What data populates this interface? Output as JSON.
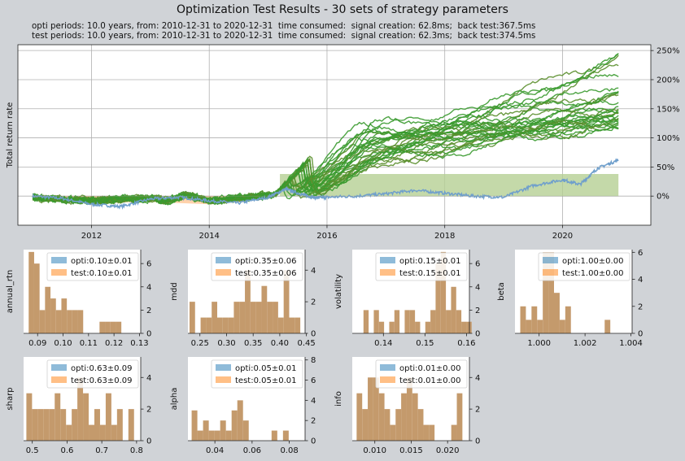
{
  "title": "Optimization Test Results - 30 sets of strategy parameters",
  "info_lines": [
    "opti periods: 10.0 years, from: 2010-12-31 to 2020-12-31  time consumed:  signal creation: 62.8ms;  back test:367.5ms",
    "test periods: 10.0 years, from: 2010-12-31 to 2020-12-31  time consumed:  signal creation: 62.3ms;  back test:374.5ms"
  ],
  "colors": {
    "opti": "#1f77b4",
    "test": "#ff7f0e",
    "strategy": "#3a9a2f",
    "benchmark": "#6f9fcc",
    "area": "#b5cf94",
    "overlap": "#c49a6c"
  },
  "chart_data": [
    {
      "type": "line",
      "name": "total-return",
      "ylabel": "Total return rate",
      "x_ticks": [
        "2012",
        "2014",
        "2016",
        "2018",
        "2020"
      ],
      "x_range": [
        2010.75,
        2021.5
      ],
      "y_ticks": [
        "0%",
        "50%",
        "100%",
        "150%",
        "200%",
        "250%"
      ],
      "ylim": [
        -50,
        260
      ],
      "grid": true,
      "benchmark": {
        "x": [
          2011.0,
          2011.5,
          2012.0,
          2012.5,
          2013.0,
          2013.5,
          2014.0,
          2014.5,
          2015.0,
          2015.3,
          2015.6,
          2015.8,
          2016.0,
          2016.5,
          2017.0,
          2017.5,
          2018.0,
          2018.5,
          2019.0,
          2019.5,
          2020.0,
          2020.3,
          2020.6,
          2020.95
        ],
        "y": [
          0,
          -4,
          -14,
          -18,
          -5,
          -2,
          -8,
          -12,
          -2,
          12,
          2,
          -3,
          -2,
          0,
          4,
          10,
          5,
          0,
          -2,
          18,
          28,
          20,
          48,
          62
        ]
      },
      "strategy_final_values": [
        248,
        240,
        235,
        222,
        210,
        195,
        185,
        176,
        170,
        165,
        160,
        155,
        152,
        148,
        145,
        142,
        140,
        138,
        136,
        134,
        132,
        130,
        128,
        127,
        126,
        125,
        124,
        122,
        121,
        120
      ]
    },
    {
      "type": "bar",
      "name": "annual_rtn",
      "ylabel": "annual_rtn",
      "x_ticks": [
        "0.09",
        "0.10",
        "0.11",
        "0.12",
        "0.13"
      ],
      "xlim": [
        0.0845,
        0.1305
      ],
      "y_ticks": [
        "0",
        "2",
        "4",
        "6"
      ],
      "ylim": [
        0,
        7.2
      ],
      "bin_start": 0.0865,
      "bin_width": 0.00214,
      "counts": [
        7,
        6,
        2,
        4,
        3,
        2,
        3,
        2,
        2,
        2,
        0,
        0,
        0,
        1,
        1,
        1,
        1
      ],
      "legend": [
        "opti:0.10±0.01",
        "test:0.10±0.01"
      ],
      "legend_pos": "top-right"
    },
    {
      "type": "bar",
      "name": "mdd",
      "ylabel": "mdd",
      "x_ticks": [
        "0.25",
        "0.30",
        "0.35",
        "0.40",
        "0.45"
      ],
      "xlim": [
        0.2275,
        0.4475
      ],
      "y_ticks": [
        "0",
        "2",
        "4"
      ],
      "ylim": [
        0,
        5.3
      ],
      "bin_start": 0.2305,
      "bin_width": 0.0104,
      "counts": [
        2,
        0,
        1,
        1,
        2,
        1,
        1,
        1,
        2,
        2,
        4,
        2,
        2,
        3,
        2,
        2,
        1,
        4,
        1,
        1
      ],
      "legend": [
        "opti:0.35±0.06",
        "test:0.35±0.06"
      ],
      "legend_pos": "top-right"
    },
    {
      "type": "bar",
      "name": "volatility",
      "ylabel": "volatility",
      "x_ticks": [
        "0.14",
        "0.15",
        "0.16"
      ],
      "xlim": [
        0.1325,
        0.1607
      ],
      "y_ticks": [
        "0",
        "2",
        "4",
        "6"
      ],
      "ylim": [
        0,
        7.2
      ],
      "bin_start": 0.1352,
      "bin_width": 0.00124,
      "counts": [
        2,
        0,
        2,
        1,
        0,
        1,
        2,
        0,
        2,
        2,
        1,
        0,
        1,
        2,
        6,
        7,
        2,
        4,
        2,
        1,
        1
      ],
      "legend": [
        "opti:0.15±0.01",
        "test:0.15±0.01"
      ],
      "legend_pos": "top-right"
    },
    {
      "type": "bar",
      "name": "beta",
      "ylabel": "beta",
      "x_ticks": [
        "1.000",
        "1.002",
        "1.004"
      ],
      "xlim": [
        0.99895,
        1.00405
      ],
      "y_ticks": [
        "0",
        "2",
        "4",
        "6"
      ],
      "ylim": [
        0,
        6.2
      ],
      "bin_start": 0.99918,
      "bin_width": 0.000245,
      "counts": [
        2,
        1,
        2,
        1,
        6,
        6,
        3,
        1,
        2,
        0,
        0,
        0,
        0,
        0,
        0,
        1
      ],
      "legend": [
        "opti:1.00±0.00",
        "test:1.00±0.00"
      ],
      "legend_pos": "top-right"
    },
    {
      "type": "bar",
      "name": "sharp",
      "ylabel": "sharp",
      "x_ticks": [
        "0.5",
        "0.6",
        "0.7",
        "0.8"
      ],
      "xlim": [
        0.475,
        0.812
      ],
      "y_ticks": [
        "0",
        "2",
        "4"
      ],
      "ylim": [
        0,
        5.3
      ],
      "bin_start": 0.483,
      "bin_width": 0.0163,
      "counts": [
        3,
        2,
        2,
        2,
        2,
        3,
        2,
        1,
        2,
        4,
        3,
        1,
        2,
        1,
        3,
        1,
        2,
        0,
        2
      ],
      "legend": [
        "opti:0.63±0.09",
        "test:0.63±0.09"
      ],
      "legend_pos": "top-right"
    },
    {
      "type": "bar",
      "name": "alpha",
      "ylabel": "alpha",
      "x_ticks": [
        "0.04",
        "0.06",
        "0.08"
      ],
      "xlim": [
        0.0255,
        0.0885
      ],
      "y_ticks": [
        "0",
        "2",
        "4",
        "6",
        "8"
      ],
      "ylim": [
        0,
        8.3
      ],
      "bin_start": 0.0275,
      "bin_width": 0.00307,
      "counts": [
        3,
        1,
        2,
        1,
        1,
        2,
        1,
        3,
        4,
        2,
        0,
        0,
        0,
        0,
        1,
        0,
        1
      ],
      "legend": [
        "opti:0.05±0.01",
        "test:0.05±0.01"
      ],
      "legend_pos": "top-right"
    },
    {
      "type": "bar",
      "name": "info",
      "ylabel": "info",
      "x_ticks": [
        "0.010",
        "0.015",
        "0.020"
      ],
      "xlim": [
        0.0069,
        0.023
      ],
      "y_ticks": [
        "0",
        "2",
        "4"
      ],
      "ylim": [
        0,
        5.3
      ],
      "bin_start": 0.0075,
      "bin_width": 0.000765,
      "counts": [
        3,
        2,
        4,
        4,
        3,
        2,
        1,
        2,
        3,
        4,
        3,
        2,
        1,
        1,
        0,
        0,
        0,
        1,
        3
      ],
      "legend": [
        "opti:0.01±0.00",
        "test:0.01±0.00"
      ],
      "legend_pos": "top-right"
    }
  ]
}
